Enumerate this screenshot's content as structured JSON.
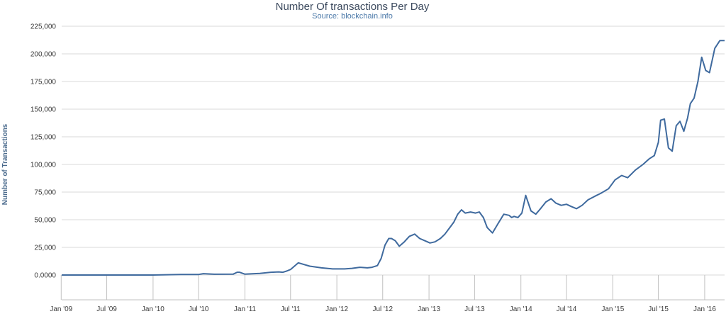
{
  "chart_data": {
    "type": "line",
    "title": "Number Of transactions Per Day",
    "subtitle": "Source: blockchain.info",
    "xlabel": "",
    "ylabel": "Number of Transactions",
    "x_axis": "date",
    "xlim": [
      "2009-01-03",
      "2016-03-20"
    ],
    "ylim": [
      0,
      225000
    ],
    "grid": true,
    "legend": "none",
    "line_color": "#3f6a9e",
    "y_ticks": [
      0,
      25000,
      50000,
      75000,
      100000,
      125000,
      150000,
      175000,
      200000,
      225000
    ],
    "y_tick_labels": [
      "0.0000",
      "25,000",
      "50,000",
      "75,000",
      "100,000",
      "125,000",
      "150,000",
      "175,000",
      "200,000",
      "225,000"
    ],
    "x_tick_labels": [
      "Jan '09",
      "Jul '09",
      "Jan '10",
      "Jul '10",
      "Jan '11",
      "Jul '11",
      "Jan '12",
      "Jul '12",
      "Jan '13",
      "Jul '13",
      "Jan '14",
      "Jul '14",
      "Jan '15",
      "Jul '15",
      "Jan '16"
    ],
    "x_tick_dates": [
      "2009-01-01",
      "2009-07-01",
      "2010-01-01",
      "2010-07-01",
      "2011-01-01",
      "2011-07-01",
      "2012-01-01",
      "2012-07-01",
      "2013-01-01",
      "2013-07-01",
      "2014-01-01",
      "2014-07-01",
      "2015-01-01",
      "2015-07-01",
      "2016-01-01"
    ],
    "series": [
      {
        "name": "",
        "x": [
          "2009-01-03",
          "2009-07-01",
          "2010-01-01",
          "2010-05-01",
          "2010-07-01",
          "2010-07-20",
          "2010-09-01",
          "2010-11-15",
          "2010-12-01",
          "2010-12-10",
          "2011-01-01",
          "2011-03-01",
          "2011-04-15",
          "2011-05-15",
          "2011-06-01",
          "2011-06-15",
          "2011-07-01",
          "2011-08-01",
          "2011-09-15",
          "2011-11-01",
          "2011-12-15",
          "2012-02-01",
          "2012-03-01",
          "2012-04-01",
          "2012-05-01",
          "2012-05-20",
          "2012-06-10",
          "2012-06-25",
          "2012-07-10",
          "2012-07-25",
          "2012-08-05",
          "2012-08-20",
          "2012-09-05",
          "2012-09-25",
          "2012-10-15",
          "2012-11-05",
          "2012-11-25",
          "2012-12-15",
          "2013-01-05",
          "2013-01-25",
          "2013-02-15",
          "2013-03-05",
          "2013-03-25",
          "2013-04-10",
          "2013-04-25",
          "2013-05-10",
          "2013-05-25",
          "2013-06-15",
          "2013-07-05",
          "2013-07-20",
          "2013-08-05",
          "2013-08-20",
          "2013-09-10",
          "2013-10-01",
          "2013-10-25",
          "2013-11-15",
          "2013-11-25",
          "2013-12-05",
          "2013-12-20",
          "2014-01-05",
          "2014-01-20",
          "2014-02-10",
          "2014-03-01",
          "2014-03-20",
          "2014-04-10",
          "2014-05-01",
          "2014-05-20",
          "2014-06-10",
          "2014-07-01",
          "2014-07-20",
          "2014-08-10",
          "2014-09-01",
          "2014-09-25",
          "2014-10-20",
          "2014-11-15",
          "2014-12-15",
          "2015-01-10",
          "2015-02-05",
          "2015-03-01",
          "2015-04-01",
          "2015-05-01",
          "2015-05-25",
          "2015-06-15",
          "2015-07-01",
          "2015-07-10",
          "2015-07-25",
          "2015-08-10",
          "2015-08-25",
          "2015-09-10",
          "2015-09-25",
          "2015-10-10",
          "2015-10-25",
          "2015-11-05",
          "2015-11-20",
          "2015-12-05",
          "2015-12-20",
          "2016-01-05",
          "2016-01-20",
          "2016-02-10",
          "2016-03-01",
          "2016-03-20"
        ],
        "y": [
          0,
          0,
          0,
          500,
          500,
          1200,
          700,
          800,
          2500,
          2500,
          800,
          1500,
          2500,
          2800,
          2500,
          3500,
          5000,
          11000,
          8000,
          6500,
          5500,
          5500,
          6000,
          7000,
          6500,
          7000,
          8500,
          15000,
          27000,
          33000,
          33000,
          31000,
          26000,
          30000,
          35000,
          37000,
          33000,
          31000,
          29000,
          30000,
          33000,
          37000,
          43000,
          48000,
          55000,
          59000,
          56000,
          57000,
          56000,
          57000,
          52000,
          43000,
          38000,
          46000,
          55000,
          54000,
          52000,
          53000,
          52000,
          56000,
          72000,
          58000,
          55000,
          60000,
          66000,
          69000,
          65000,
          63000,
          64000,
          62000,
          60000,
          63000,
          68000,
          71000,
          74000,
          78000,
          86000,
          90000,
          88000,
          95000,
          100000,
          105000,
          108000,
          120000,
          140000,
          141000,
          115000,
          112000,
          135000,
          139000,
          130000,
          142000,
          155000,
          160000,
          175000,
          197000,
          185000,
          183000,
          205000,
          212000,
          212000
        ]
      }
    ]
  }
}
